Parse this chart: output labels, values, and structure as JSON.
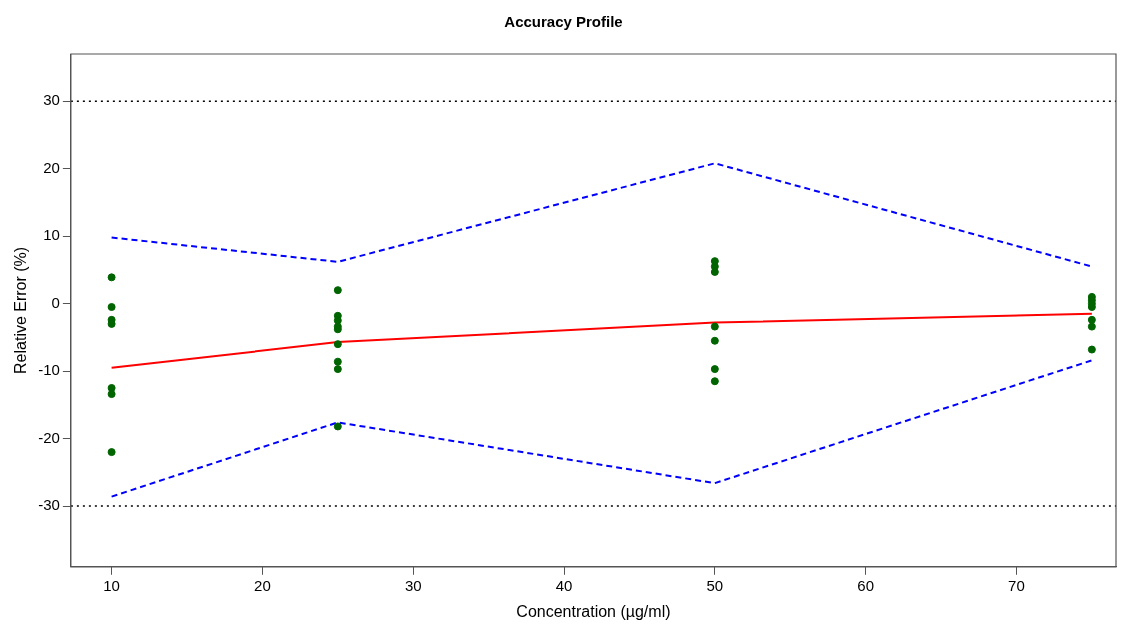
{
  "chart_data": {
    "type": "scatter",
    "title": "Accuracy Profile",
    "xlabel": "Concentration (µg/ml)",
    "ylabel": "Relative Error (%)",
    "xlim": [
      7.3,
      76.6
    ],
    "xticks": [
      10,
      20,
      30,
      40,
      50,
      60,
      70
    ],
    "ylim": [
      -39,
      37
    ],
    "yticks": [
      -30,
      -20,
      -10,
      0,
      10,
      20,
      30
    ],
    "grid": false,
    "legend": false,
    "series": [
      {
        "type": "scatter",
        "color": "#006400",
        "marker": "circle",
        "x": [
          10,
          10,
          10,
          10,
          10,
          10,
          10,
          25,
          25,
          25,
          25,
          25,
          25,
          25,
          25,
          25,
          50,
          50,
          50,
          50,
          50,
          50,
          50,
          75,
          75,
          75,
          75,
          75,
          75,
          75
        ],
        "values": [
          3.9,
          -0.5,
          -2.4,
          -3,
          -12.5,
          -13.4,
          -22,
          2,
          -1.8,
          -2.5,
          -3.4,
          -3.8,
          -6,
          -8.6,
          -9.7,
          -18.2,
          6.3,
          5.5,
          4.7,
          -3.4,
          -5.5,
          -9.7,
          -11.5,
          1,
          0.5,
          0,
          -0.5,
          -2.4,
          -3.4,
          -6.8
        ]
      },
      {
        "type": "line",
        "color": "#ff0000",
        "line_style": "solid",
        "marker": "none",
        "x": [
          10,
          25,
          50,
          75
        ],
        "values": [
          -9.5,
          -5.7,
          -2.8,
          -1.5
        ]
      },
      {
        "type": "line",
        "color": "#0000ff",
        "line_style": "dashed",
        "marker": "none",
        "x": [
          10,
          25,
          50,
          75
        ],
        "values": [
          9.8,
          6.2,
          20.8,
          5.5
        ]
      },
      {
        "type": "line",
        "color": "#0000ff",
        "line_style": "dashed",
        "marker": "none",
        "x": [
          10,
          25,
          50,
          75
        ],
        "values": [
          -28.6,
          -17.6,
          -26.6,
          -8.4
        ]
      }
    ],
    "ref_lines": [
      {
        "axis": "y",
        "value": 30,
        "color": "#000000",
        "line_style": "dotted"
      },
      {
        "axis": "y",
        "value": -30,
        "color": "#000000",
        "line_style": "dotted"
      }
    ]
  }
}
